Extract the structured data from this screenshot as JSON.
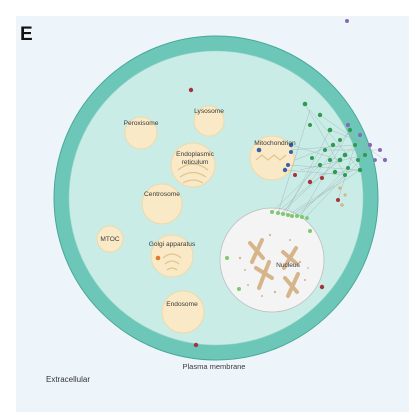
{
  "panel_letter": "E",
  "regions": {
    "extracellular": "Extracellular",
    "plasma_membrane": "Plasma membrane"
  },
  "organelles": {
    "peroxisome": "Peroxisome",
    "lysosome": "Lysosome",
    "er_line1": "Endoplasmic",
    "er_line2": "reticulum",
    "mitochondrion": "Mitochondrion",
    "centrosome": "Centrosome",
    "mtoc": "MTOC",
    "golgi": "Golgi apparatus",
    "nucleus": "Nucleus",
    "endosome": "Endosome"
  },
  "colors": {
    "membrane": "#6cc7b8",
    "cytoplasm": "#c9ece6",
    "organelle": "#f9e9c7",
    "organelle_stroke": "#efd9a8",
    "nucleus": "#f4f4f4",
    "chromatin": "#d6b58a",
    "node_green": "#2e9a52",
    "node_purple": "#8a68b8",
    "node_red": "#a8323c",
    "node_blue": "#3563a8",
    "node_lightgreen": "#7fc96f",
    "node_orange": "#e07a2c"
  }
}
